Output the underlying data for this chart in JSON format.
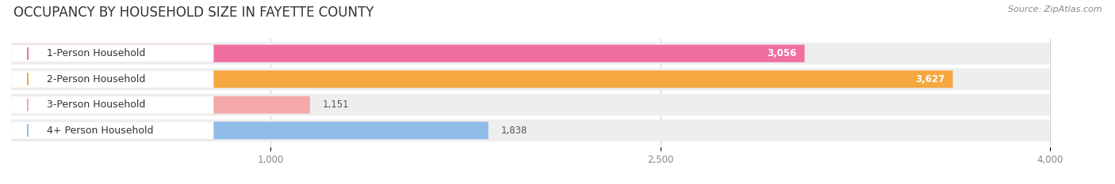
{
  "title": "OCCUPANCY BY HOUSEHOLD SIZE IN FAYETTE COUNTY",
  "source": "Source: ZipAtlas.com",
  "categories": [
    "1-Person Household",
    "2-Person Household",
    "3-Person Household",
    "4+ Person Household"
  ],
  "values": [
    3056,
    3627,
    1151,
    1838
  ],
  "bar_colors": [
    "#f06fa0",
    "#f5a840",
    "#f4a8a8",
    "#90bce8"
  ],
  "circle_colors": [
    "#f06fa0",
    "#f5a840",
    "#f4a8a8",
    "#90bce8"
  ],
  "value_inside": [
    true,
    true,
    false,
    false
  ],
  "value_text_colors_inside": [
    "#ffffff",
    "#ffffff",
    "#555555",
    "#555555"
  ],
  "background_color": "#ffffff",
  "row_bg_color": "#eeeeee",
  "xlim_min": 0,
  "xlim_max": 4200,
  "data_max": 4000,
  "xticks": [
    1000,
    2500,
    4000
  ],
  "title_fontsize": 12,
  "label_fontsize": 9,
  "value_fontsize": 8.5,
  "source_fontsize": 8
}
